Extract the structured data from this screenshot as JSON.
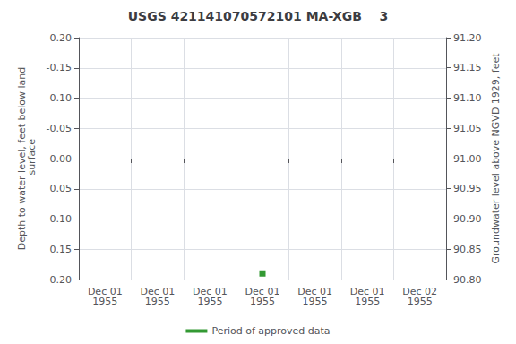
{
  "chart_data": {
    "type": "scatter",
    "title": "USGS 421141070572101 MA-XGB    3",
    "y_label": "Depth to water level, feet below land\n surface",
    "y2_label": "Groundwater level above NGVD 1929, feet",
    "categories": [
      "Dec 01\n1955",
      "Dec 01\n1955",
      "Dec 01\n1955",
      "Dec 01\n1955",
      "Dec 01\n1955",
      "Dec 01\n1955",
      "Dec 02\n1955"
    ],
    "series": [
      {
        "color": "#0000cc",
        "marker": "open_circle",
        "values": [
          null,
          null,
          null,
          0.0,
          null,
          null,
          null
        ]
      },
      {
        "name": "Period of approved data",
        "color": "#008000",
        "marker": "square",
        "values": [
          null,
          null,
          null,
          0.19,
          null,
          null,
          null
        ]
      }
    ],
    "ylim": [
      0.2,
      -0.2
    ],
    "yticks": [
      {
        "value": -0.2,
        "label": "-0.20"
      },
      -0.15,
      {
        "value": -0.1,
        "label": "-0.10"
      },
      -0.05,
      {
        "value": 0.0,
        "label": "0.00"
      },
      0.05,
      {
        "value": 0.1,
        "label": "0.10"
      },
      0.15,
      {
        "value": 0.2,
        "label": "0.20"
      }
    ],
    "y2lim": [
      90.8,
      91.2
    ],
    "y2ticks": [
      {
        "value": 91.2,
        "label": "91.20"
      },
      91.15,
      {
        "value": 91.1,
        "label": "91.10"
      },
      91.05,
      {
        "value": 91.0,
        "label": "91.00"
      },
      90.95,
      {
        "value": 90.9,
        "label": "90.90"
      },
      90.85,
      {
        "value": 90.8,
        "label": "90.80"
      }
    ],
    "grid": true,
    "legend": "bottom"
  }
}
